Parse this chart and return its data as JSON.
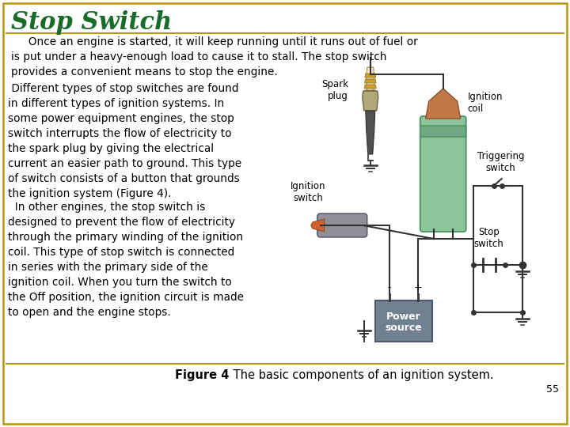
{
  "title": "Stop Switch",
  "title_color": "#1A6B2A",
  "title_fontsize": 22,
  "title_style": "italic",
  "title_weight": "bold",
  "bg_color": "#FFFFFF",
  "border_color": "#B8960C",
  "para1": "     Once an engine is started, it will keep running until it runs out of fuel or\nis put under a heavy-enough load to cause it to stall. The stop switch\nprovides a convenient means to stop the engine.",
  "para2": " Different types of stop switches are found\nin different types of ignition systems. In\nsome power equipment engines, the stop\nswitch interrupts the flow of electricity to\nthe spark plug by giving the electrical\ncurrent an easier path to ground. This type\nof switch consists of a button that grounds\nthe ignition system (Figure 4).",
  "para3": "  In other engines, the stop switch is\ndesigned to prevent the flow of electricity\nthrough the primary winding of the ignition\ncoil. This type of stop switch is connected\nin series with the primary side of the\nignition coil. When you turn the switch to\nthe Off position, the ignition circuit is made\nto open and the engine stops.",
  "caption_bold": "Figure 4",
  "caption_rest": " The basic components of an ignition system.",
  "page_number": "55",
  "text_color": "#000000",
  "text_fontsize": 9.8,
  "label_fontsize": 8.5,
  "caption_fontsize": 10.5,
  "wire_color": "#333333",
  "coil_green": "#8EC49A",
  "coil_top": "#C07845",
  "coil_dark": "#4A9060",
  "battery_color": "#708090",
  "battery_dark": "#4A5A6A",
  "spark_gold": "#C8A030",
  "spark_dark": "#707060",
  "switch_color": "#8888AA"
}
